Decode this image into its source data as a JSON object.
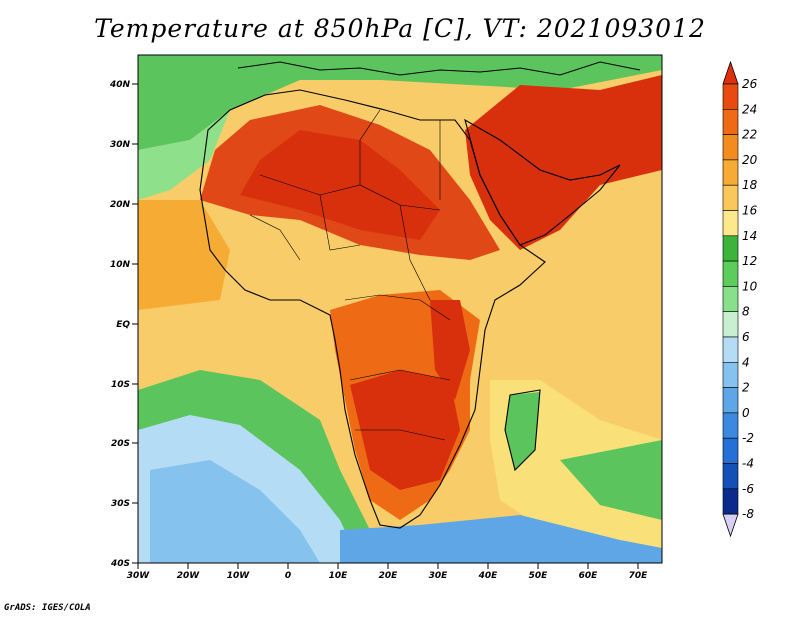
{
  "title": "Temperature at 850hPa [C], VT: 2021093012",
  "credit": "GrADS: IGES/COLA",
  "map": {
    "lat_labels": [
      "40N",
      "30N",
      "20N",
      "10N",
      "EQ",
      "10S",
      "20S",
      "30S",
      "40S"
    ],
    "lon_labels": [
      "30W",
      "20W",
      "10W",
      "0",
      "10E",
      "20E",
      "30E",
      "40E",
      "50E",
      "60E",
      "70E"
    ]
  },
  "colorbar": {
    "labels": [
      "26",
      "24",
      "22",
      "20",
      "18",
      "16",
      "14",
      "12",
      "10",
      "8",
      "6",
      "4",
      "2",
      "0",
      "-2",
      "-4",
      "-6",
      "-8"
    ],
    "colors": {
      "above": "#e0300a",
      "bins": [
        "#e84a10",
        "#ee6a14",
        "#f28c1c",
        "#f6ac34",
        "#fac85a",
        "#fde88c",
        "#3cb43c",
        "#5ccc5a",
        "#8ae08a",
        "#c8f0d0",
        "#b4dcf4",
        "#86c2ee",
        "#5ea6e6",
        "#3c8ae0",
        "#2470d6",
        "#1450b8",
        "#0a2a8c"
      ],
      "below": "#d8d0f4"
    }
  }
}
